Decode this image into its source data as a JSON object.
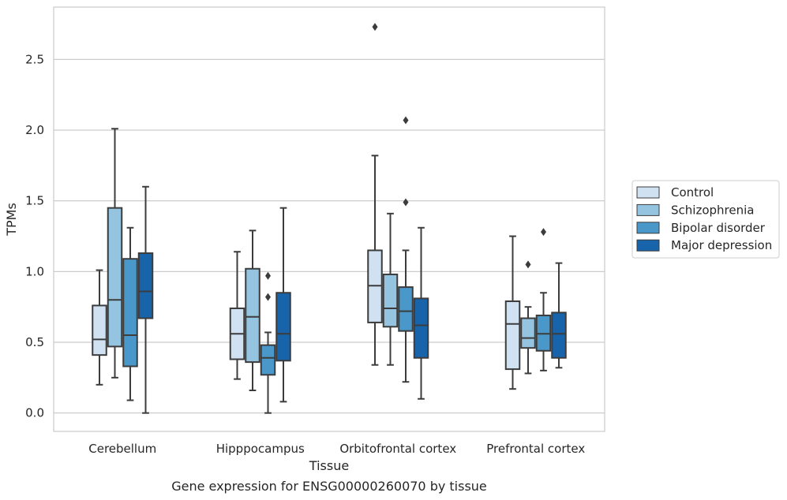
{
  "chart_data": {
    "type": "box",
    "xlabel": "Tissue",
    "ylabel": "TPMs",
    "caption": "Gene expression for ENSG00000260070 by tissue",
    "ylim": [
      -0.13,
      2.87
    ],
    "yticks": [
      "0.0",
      "0.5",
      "1.0",
      "1.5",
      "2.0",
      "2.5"
    ],
    "grid": "horizontal",
    "legend_position": "right",
    "categories": [
      "Cerebellum",
      "Hipppocampus",
      "Orbitofrontal cortex",
      "Prefrontal cortex"
    ],
    "series": [
      {
        "name": "Control",
        "color": "#d0e1f2",
        "boxes": [
          {
            "whislo": 0.2,
            "q1": 0.41,
            "med": 0.52,
            "q3": 0.76,
            "whishi": 1.01,
            "fliers": []
          },
          {
            "whislo": 0.24,
            "q1": 0.38,
            "med": 0.56,
            "q3": 0.74,
            "whishi": 1.14,
            "fliers": []
          },
          {
            "whislo": 0.34,
            "q1": 0.64,
            "med": 0.9,
            "q3": 1.15,
            "whishi": 1.82,
            "fliers": [
              2.73
            ]
          },
          {
            "whislo": 0.17,
            "q1": 0.31,
            "med": 0.63,
            "q3": 0.79,
            "whishi": 1.25,
            "fliers": []
          }
        ]
      },
      {
        "name": "Schizophrenia",
        "color": "#94c4df",
        "boxes": [
          {
            "whislo": 0.25,
            "q1": 0.47,
            "med": 0.8,
            "q3": 1.45,
            "whishi": 2.01,
            "fliers": []
          },
          {
            "whislo": 0.16,
            "q1": 0.36,
            "med": 0.68,
            "q3": 1.02,
            "whishi": 1.29,
            "fliers": []
          },
          {
            "whislo": 0.34,
            "q1": 0.61,
            "med": 0.74,
            "q3": 0.98,
            "whishi": 1.41,
            "fliers": []
          },
          {
            "whislo": 0.28,
            "q1": 0.46,
            "med": 0.53,
            "q3": 0.67,
            "whishi": 0.75,
            "fliers": [
              1.05
            ]
          }
        ]
      },
      {
        "name": "Bipolar disorder",
        "color": "#4a98c9",
        "boxes": [
          {
            "whislo": 0.09,
            "q1": 0.33,
            "med": 0.55,
            "q3": 1.09,
            "whishi": 1.31,
            "fliers": []
          },
          {
            "whislo": 0.0,
            "q1": 0.27,
            "med": 0.39,
            "q3": 0.48,
            "whishi": 0.57,
            "fliers": [
              0.82,
              0.97
            ]
          },
          {
            "whislo": 0.22,
            "q1": 0.58,
            "med": 0.72,
            "q3": 0.89,
            "whishi": 1.15,
            "fliers": [
              1.49,
              2.07
            ]
          },
          {
            "whislo": 0.3,
            "q1": 0.44,
            "med": 0.56,
            "q3": 0.69,
            "whishi": 0.85,
            "fliers": [
              1.28
            ]
          }
        ]
      },
      {
        "name": "Major depression",
        "color": "#1764ab",
        "boxes": [
          {
            "whislo": 0.0,
            "q1": 0.67,
            "med": 0.86,
            "q3": 1.13,
            "whishi": 1.6,
            "fliers": []
          },
          {
            "whislo": 0.08,
            "q1": 0.37,
            "med": 0.56,
            "q3": 0.85,
            "whishi": 1.45,
            "fliers": []
          },
          {
            "whislo": 0.1,
            "q1": 0.39,
            "med": 0.62,
            "q3": 0.81,
            "whishi": 1.31,
            "fliers": []
          },
          {
            "whislo": 0.32,
            "q1": 0.39,
            "med": 0.56,
            "q3": 0.71,
            "whishi": 1.06,
            "fliers": []
          }
        ]
      }
    ]
  }
}
